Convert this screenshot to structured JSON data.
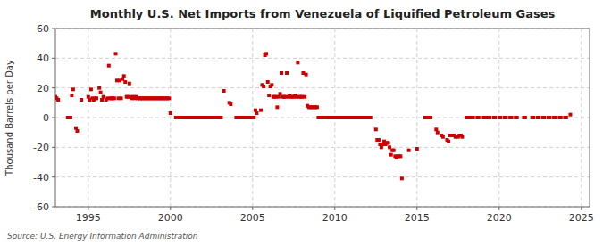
{
  "chart_data": {
    "type": "scatter",
    "title": "Monthly U.S. Net Imports from Venezuela of Liquified Petroleum Gases",
    "y_label": "Thousand Barrels per Day",
    "source": "Source: U.S. Energy Information Administration",
    "color": "#cc0000",
    "marker": "square",
    "grid": true,
    "xlim": [
      1993.0,
      2025.5
    ],
    "ylim": [
      -60,
      60
    ],
    "xticks": [
      1995,
      2000,
      2005,
      2010,
      2015,
      2020,
      2025
    ],
    "yticks": [
      -60,
      -40,
      -20,
      0,
      20,
      40,
      60
    ],
    "x": [
      1993.0,
      1993.08,
      1993.17,
      1993.75,
      1993.83,
      1993.92,
      1994.0,
      1994.08,
      1994.25,
      1994.33,
      1994.58,
      1995.0,
      1995.08,
      1995.17,
      1995.25,
      1995.33,
      1995.42,
      1995.5,
      1995.67,
      1995.75,
      1995.83,
      1995.92,
      1996.08,
      1996.17,
      1996.25,
      1996.33,
      1996.42,
      1996.5,
      1996.58,
      1996.67,
      1996.75,
      1996.83,
      1996.92,
      1997.0,
      1997.08,
      1997.17,
      1997.25,
      1997.33,
      1997.42,
      1997.5,
      1997.58,
      1997.67,
      1997.75,
      1997.83,
      1997.92,
      1998.0,
      1998.08,
      1998.17,
      1998.25,
      1998.33,
      1998.42,
      1998.5,
      1998.58,
      1998.67,
      1998.75,
      1998.83,
      1998.92,
      1999.0,
      1999.08,
      1999.17,
      1999.25,
      1999.33,
      1999.42,
      1999.5,
      1999.58,
      1999.67,
      1999.75,
      1999.83,
      1999.92,
      2000.0,
      2000.33,
      2000.42,
      2000.5,
      2000.58,
      2000.67,
      2000.75,
      2000.83,
      2000.92,
      2001.0,
      2001.08,
      2001.17,
      2001.25,
      2001.33,
      2001.42,
      2001.5,
      2001.58,
      2001.67,
      2001.75,
      2001.83,
      2001.92,
      2002.0,
      2002.08,
      2002.17,
      2002.25,
      2002.33,
      2002.42,
      2002.5,
      2002.58,
      2002.67,
      2002.75,
      2002.83,
      2002.92,
      2003.0,
      2003.08,
      2003.25,
      2003.58,
      2003.67,
      2004.0,
      2004.08,
      2004.17,
      2004.25,
      2004.33,
      2004.42,
      2004.5,
      2004.58,
      2004.67,
      2004.75,
      2004.83,
      2004.92,
      2005.0,
      2005.08,
      2005.17,
      2005.25,
      2005.5,
      2005.58,
      2005.67,
      2005.75,
      2005.83,
      2005.92,
      2006.0,
      2006.08,
      2006.17,
      2006.25,
      2006.33,
      2006.42,
      2006.5,
      2006.58,
      2006.67,
      2006.75,
      2006.83,
      2006.92,
      2007.0,
      2007.08,
      2007.17,
      2007.25,
      2007.33,
      2007.42,
      2007.5,
      2007.58,
      2007.67,
      2007.75,
      2007.83,
      2007.92,
      2008.0,
      2008.08,
      2008.17,
      2008.25,
      2008.33,
      2008.42,
      2008.5,
      2008.58,
      2008.67,
      2008.75,
      2008.83,
      2008.92,
      2009.0,
      2009.08,
      2009.17,
      2009.25,
      2009.33,
      2009.42,
      2009.5,
      2009.58,
      2009.67,
      2009.75,
      2009.83,
      2009.92,
      2010.0,
      2010.08,
      2010.17,
      2010.25,
      2010.33,
      2010.42,
      2010.5,
      2010.58,
      2010.67,
      2010.75,
      2010.83,
      2010.92,
      2011.0,
      2011.08,
      2011.17,
      2011.25,
      2011.33,
      2011.42,
      2011.5,
      2011.58,
      2011.67,
      2011.75,
      2011.83,
      2011.92,
      2012.0,
      2012.08,
      2012.17,
      2012.5,
      2012.58,
      2012.67,
      2012.75,
      2012.83,
      2012.92,
      2013.0,
      2013.08,
      2013.17,
      2013.25,
      2013.33,
      2013.42,
      2013.5,
      2013.58,
      2013.67,
      2013.75,
      2013.83,
      2013.92,
      2014.0,
      2014.08,
      2014.5,
      2015.0,
      2015.5,
      2015.58,
      2015.67,
      2015.75,
      2015.83,
      2016.17,
      2016.25,
      2016.5,
      2016.58,
      2016.83,
      2016.92,
      2017.0,
      2017.08,
      2017.25,
      2017.33,
      2017.5,
      2017.58,
      2017.67,
      2017.75,
      2018.0,
      2018.08,
      2018.17,
      2018.33,
      2018.42,
      2018.67,
      2018.75,
      2019.0,
      2019.08,
      2019.17,
      2019.33,
      2019.42,
      2019.67,
      2019.75,
      2020.0,
      2020.08,
      2020.33,
      2020.42,
      2020.67,
      2020.75,
      2021.0,
      2021.08,
      2021.5,
      2021.58,
      2022.0,
      2022.08,
      2022.33,
      2022.42,
      2022.67,
      2022.75,
      2023.0,
      2023.08,
      2023.33,
      2023.42,
      2023.67,
      2023.75,
      2024.0,
      2024.08,
      2024.33
    ],
    "values": [
      14,
      13,
      12,
      0,
      0,
      0,
      15,
      19,
      -7,
      -9,
      12,
      14,
      12,
      19,
      13,
      12,
      13,
      13,
      20,
      17,
      12,
      14,
      12,
      13,
      35,
      13,
      13,
      13,
      13,
      43,
      25,
      13,
      25,
      13,
      26,
      28,
      24,
      14,
      14,
      23,
      14,
      13,
      14,
      13,
      14,
      13,
      13,
      13,
      13,
      13,
      13,
      13,
      13,
      13,
      13,
      13,
      13,
      13,
      13,
      13,
      13,
      13,
      13,
      13,
      13,
      13,
      13,
      13,
      13,
      3,
      0,
      0,
      0,
      0,
      0,
      0,
      0,
      0,
      0,
      0,
      0,
      0,
      0,
      0,
      0,
      0,
      0,
      0,
      0,
      0,
      0,
      0,
      0,
      0,
      0,
      0,
      0,
      0,
      0,
      0,
      0,
      0,
      0,
      0,
      18,
      10,
      9,
      0,
      0,
      0,
      0,
      0,
      0,
      0,
      0,
      0,
      0,
      0,
      0,
      0,
      0,
      5,
      3,
      5,
      22,
      21,
      42,
      43,
      24,
      15,
      21,
      22,
      14,
      14,
      14,
      7,
      14,
      16,
      30,
      14,
      14,
      14,
      30,
      14,
      15,
      14,
      14,
      14,
      15,
      14,
      37,
      14,
      14,
      14,
      30,
      14,
      29,
      8,
      7,
      7,
      7,
      7,
      7,
      7,
      7,
      0,
      0,
      0,
      0,
      0,
      0,
      0,
      0,
      0,
      0,
      0,
      0,
      0,
      0,
      0,
      0,
      0,
      0,
      0,
      0,
      0,
      0,
      0,
      0,
      0,
      0,
      0,
      0,
      0,
      0,
      0,
      0,
      0,
      0,
      0,
      0,
      0,
      0,
      0,
      -8,
      -15,
      -15,
      -18,
      -20,
      -18,
      -16,
      -18,
      -17,
      -17,
      -20,
      -25,
      -22,
      -22,
      -26,
      -27,
      -26,
      -26,
      -26,
      -41,
      -22,
      -21,
      0,
      0,
      0,
      0,
      0,
      -8,
      -10,
      -12,
      -13,
      -15,
      -16,
      -12,
      -12,
      -12,
      -13,
      -13,
      -12,
      -12,
      -13,
      0,
      0,
      0,
      0,
      0,
      0,
      0,
      0,
      0,
      0,
      0,
      0,
      0,
      0,
      0,
      0,
      0,
      0,
      0,
      0,
      0,
      0,
      0,
      0,
      0,
      0,
      0,
      0,
      0,
      0,
      0,
      0,
      0,
      0,
      0,
      0,
      0,
      0,
      2
    ]
  }
}
